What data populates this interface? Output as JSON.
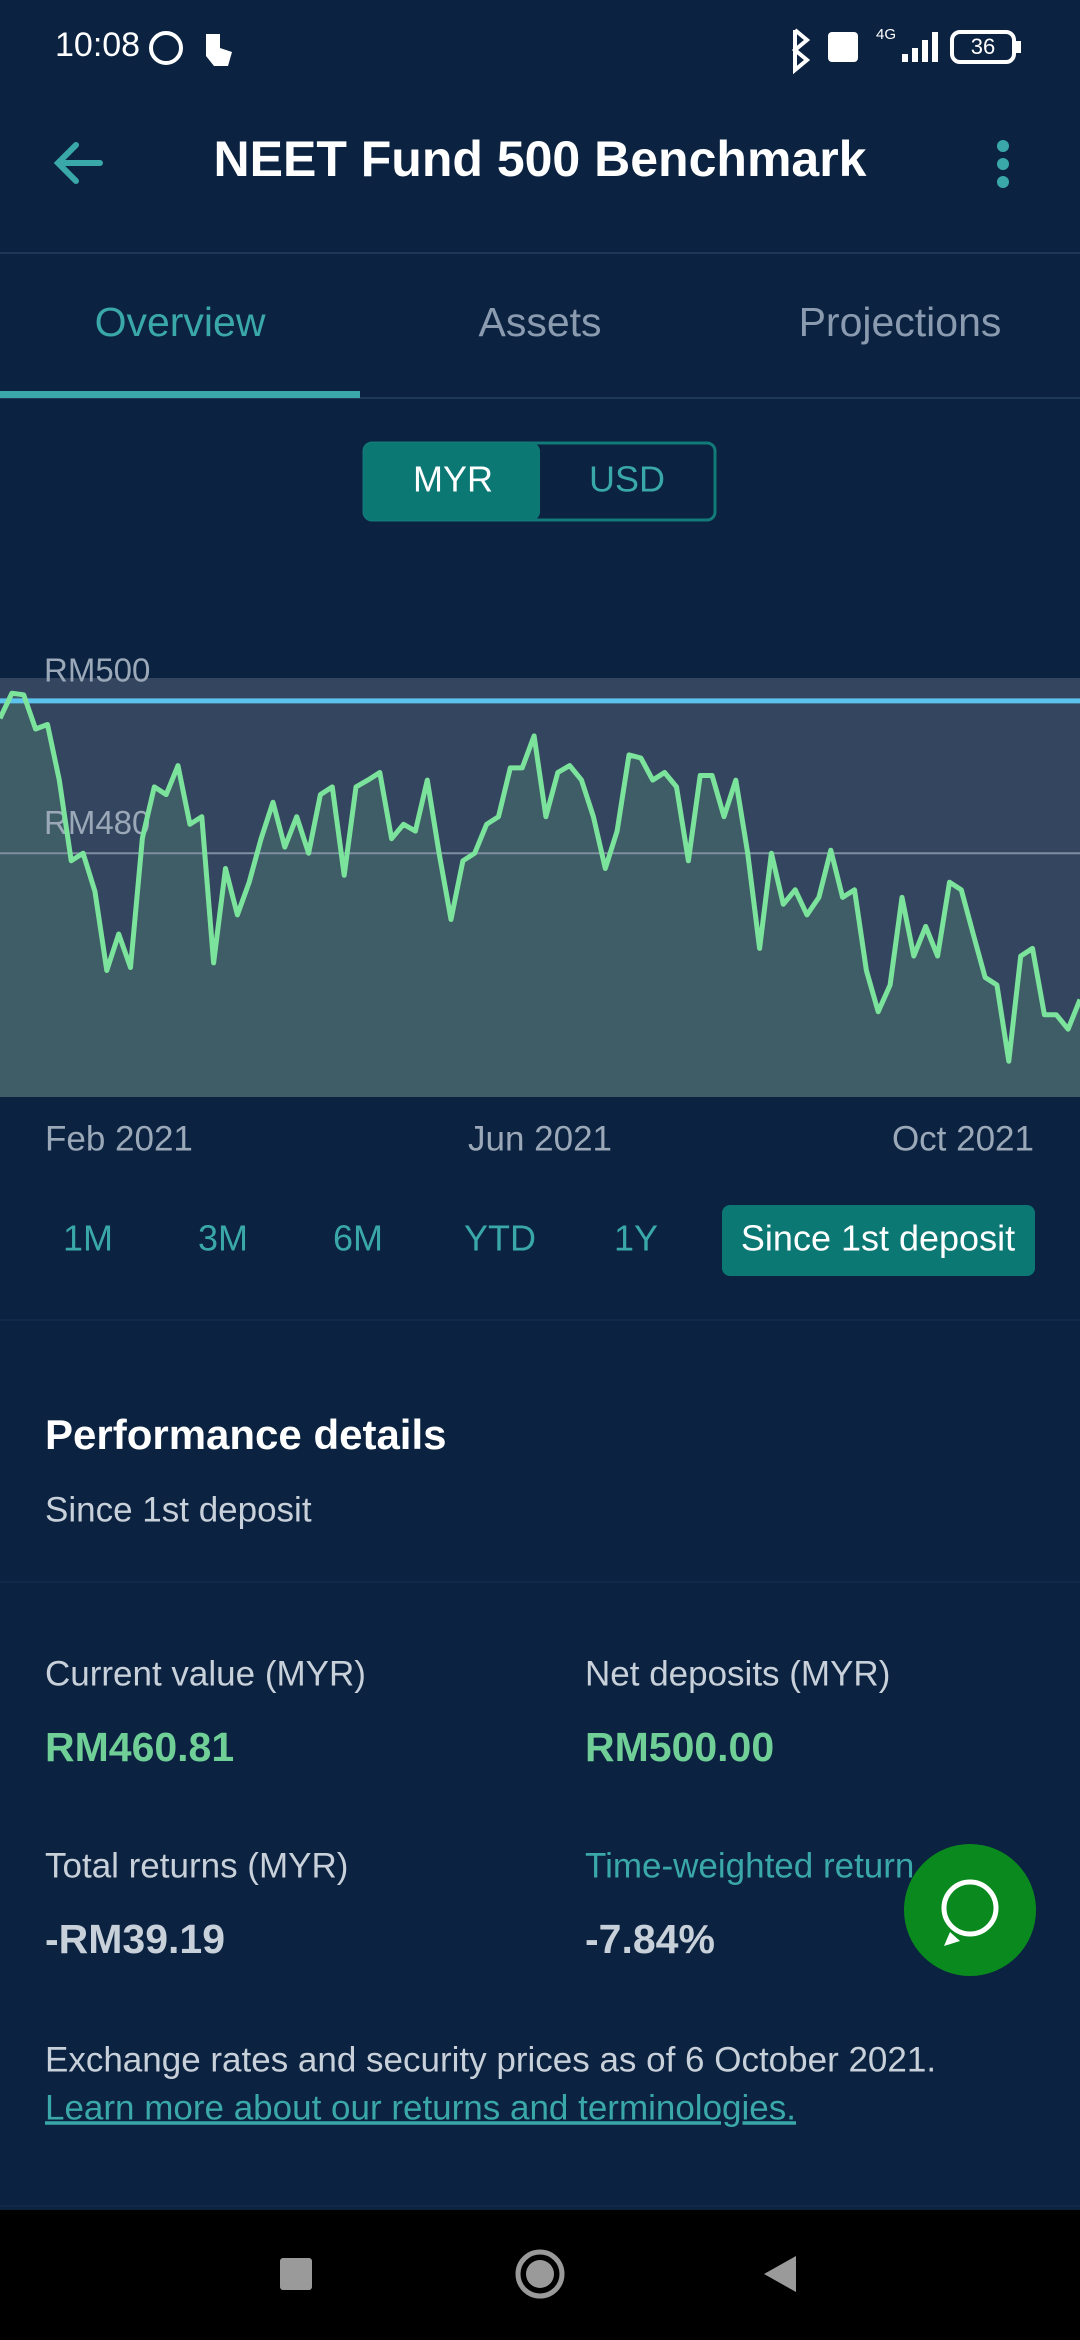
{
  "status_bar": {
    "time": "10:08",
    "network": "4G",
    "battery": "36"
  },
  "header": {
    "title": "NEET Fund 500 Benchmark"
  },
  "tabs": [
    "Overview",
    "Assets",
    "Projections"
  ],
  "currency_toggle": [
    "MYR",
    "USD"
  ],
  "chart_data": {
    "type": "line",
    "series": [
      {
        "color": "#7be39b",
        "values": [
          497.7,
          501,
          500.8,
          496.3,
          496.9,
          489.6,
          479,
          480,
          475,
          464.6,
          469.4,
          465,
          482,
          488.7,
          487.7,
          491.5,
          483.8,
          484.8,
          465.6,
          478,
          471.9,
          476.2,
          481.9,
          486.7,
          480.8,
          484.8,
          480,
          487.7,
          488.7,
          477.1,
          488.7,
          489.6,
          490.6,
          481.9,
          483.8,
          482.9,
          489.6,
          480,
          471.3,
          479,
          480,
          483.8,
          484.8,
          491.2,
          491.2,
          495.4,
          484.8,
          490.6,
          491.5,
          489.6,
          484.8,
          478,
          482.9,
          492.9,
          492.5,
          489.6,
          490.6,
          488.7,
          479,
          490.2,
          490.2,
          484.8,
          489.6,
          480,
          467.5,
          480,
          473.3,
          475.2,
          471.9,
          474.2,
          480.4,
          474.2,
          475.2,
          464.6,
          459.2,
          462.7,
          474.2,
          466.5,
          470.4,
          466.5,
          476.2,
          475.2,
          469.4,
          463.7,
          462.7,
          452.7,
          466.5,
          467.5,
          458.8,
          458.8,
          456.9,
          460.8
        ]
      }
    ],
    "ylim": [
      448,
      503
    ],
    "yticks": [
      {
        "value": 480,
        "label": "RM480"
      },
      {
        "value": 500,
        "label": "RM500"
      }
    ],
    "grid_colors": [
      "#7f8fa3",
      "#5cc3ec"
    ],
    "xtick_labels": [
      "Feb 2021",
      "Jun 2021",
      "Oct 2021"
    ]
  },
  "range_buttons": [
    "1M",
    "3M",
    "6M",
    "YTD",
    "1Y",
    "Since 1st deposit"
  ],
  "performance": {
    "title": "Performance details",
    "subtitle": "Since 1st deposit",
    "metrics": [
      {
        "label": "Current value (MYR)",
        "value": "RM460.81"
      },
      {
        "label": "Net deposits (MYR)",
        "value": "RM500.00"
      },
      {
        "label": "Total returns (MYR)",
        "value": "-RM39.19"
      },
      {
        "label": "Time-weighted return",
        "value": "-7.84%"
      }
    ],
    "note": "Exchange rates and security prices as of 6 October 2021.",
    "link": "Learn more about our returns and terminologies."
  }
}
